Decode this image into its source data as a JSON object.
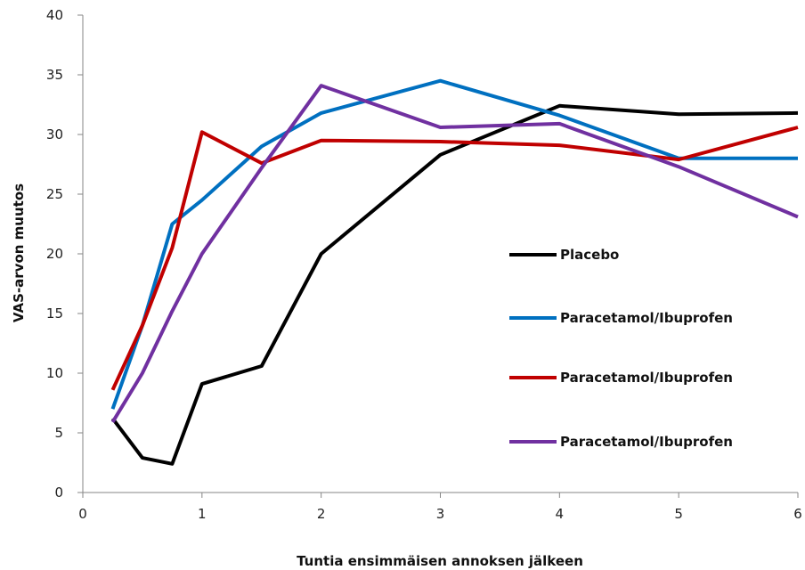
{
  "chart_data": {
    "type": "line",
    "title": "",
    "xlabel": "Tuntia ensimmäisen annoksen jälkeen",
    "ylabel": "VAS-arvon muutos",
    "xlim": [
      0,
      6
    ],
    "ylim": [
      0,
      40
    ],
    "xticks": [
      0,
      1,
      2,
      3,
      4,
      5,
      6
    ],
    "yticks": [
      0,
      5,
      10,
      15,
      20,
      25,
      30,
      35,
      40
    ],
    "x": [
      0.25,
      0.5,
      0.75,
      1,
      1.5,
      2,
      3,
      4,
      5,
      6
    ],
    "grid": false,
    "legend_position": "right",
    "series": [
      {
        "name": "Placebo",
        "color": "#000000",
        "values": [
          6.2,
          2.9,
          2.4,
          9.1,
          10.6,
          20.0,
          28.3,
          32.4,
          31.7,
          31.8
        ]
      },
      {
        "name": "Paracetamol/Ibuprofen",
        "color": "#0070C0",
        "values": [
          7.0,
          14.0,
          22.5,
          24.5,
          29.0,
          31.8,
          34.5,
          31.6,
          28.0,
          28.0
        ]
      },
      {
        "name": "Paracetamol/Ibuprofen",
        "color": "#C00000",
        "values": [
          8.6,
          14.0,
          20.5,
          30.2,
          27.6,
          29.5,
          29.4,
          29.1,
          27.9,
          30.6
        ]
      },
      {
        "name": "Paracetamol/Ibuprofen",
        "color": "#7030A0",
        "values": [
          5.9,
          10.0,
          15.2,
          20.0,
          27.2,
          34.1,
          30.6,
          30.9,
          27.3,
          23.1
        ]
      }
    ]
  }
}
